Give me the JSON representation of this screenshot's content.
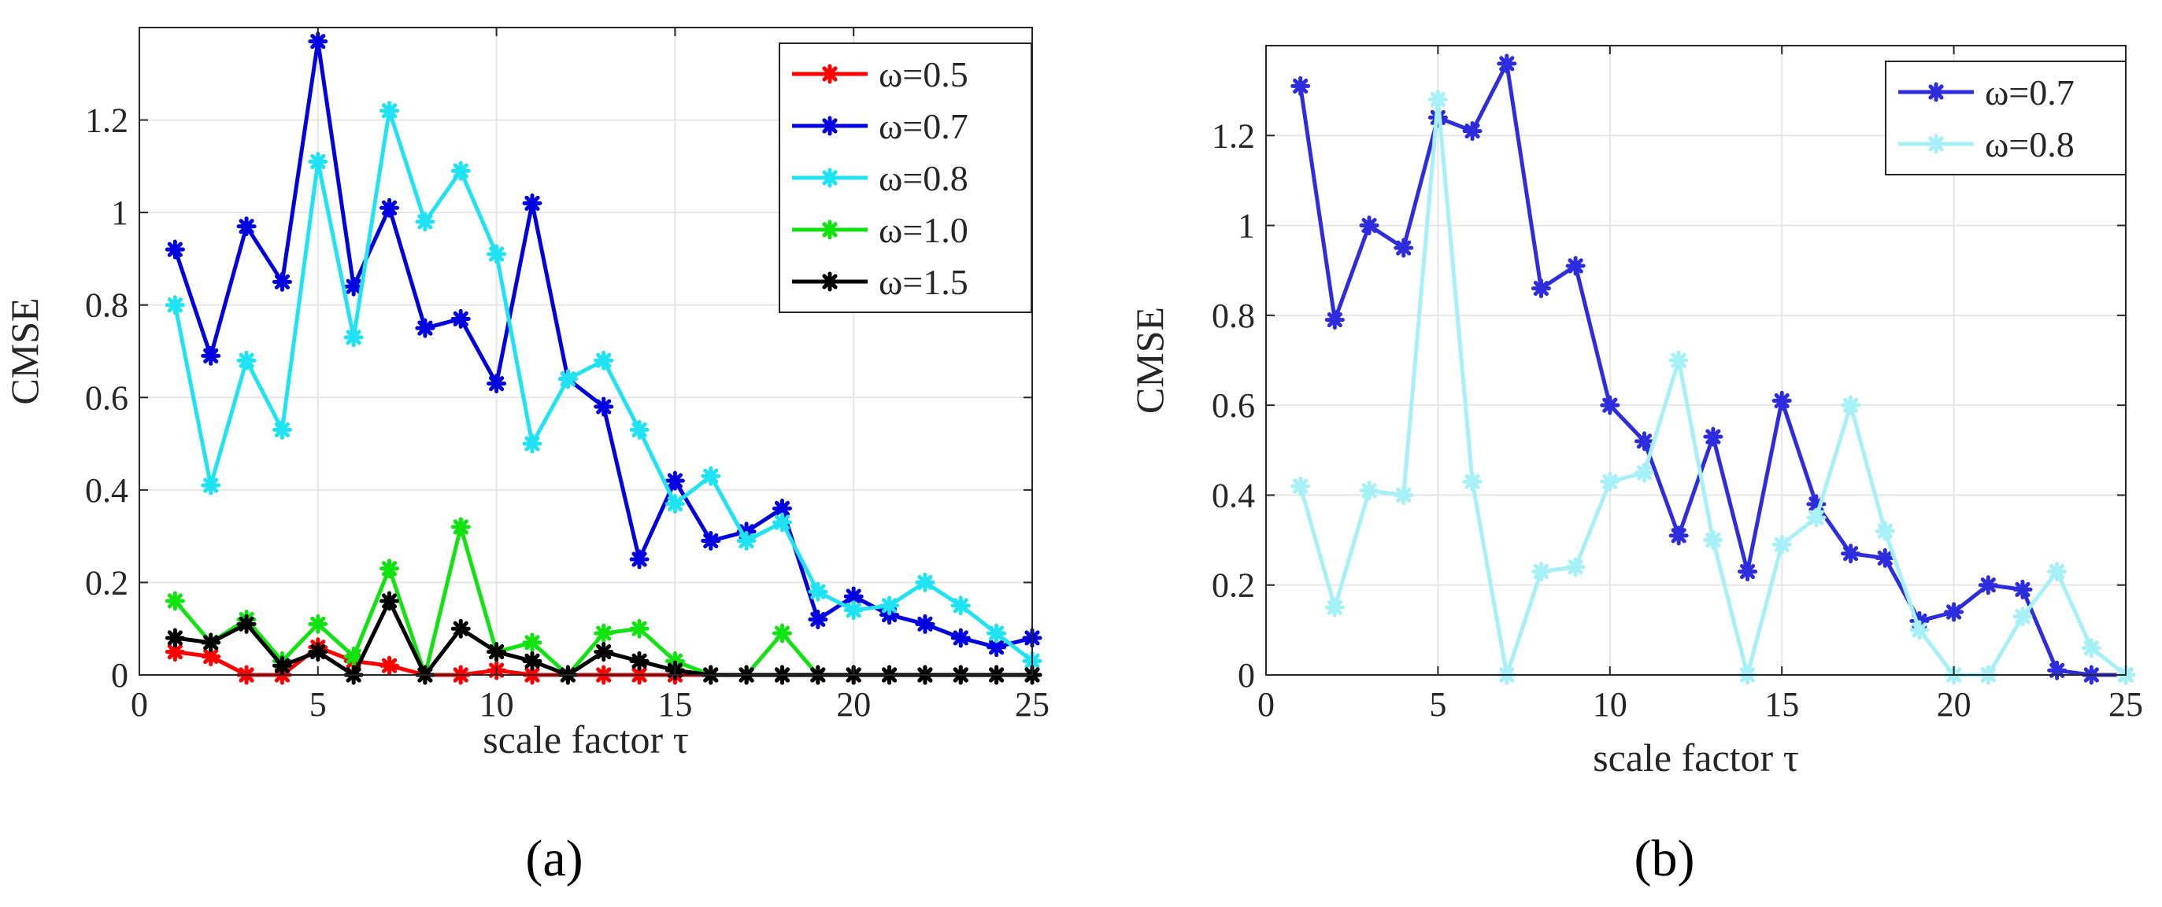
{
  "chart_data": [
    {
      "type": "line",
      "panel_label": "(a)",
      "xlabel": "scale factor τ",
      "ylabel": "CMSE",
      "xlim": [
        0,
        25
      ],
      "ylim": [
        0,
        1.4
      ],
      "xticks": [
        0,
        5,
        10,
        15,
        20,
        25
      ],
      "xtick_labels": [
        "0",
        "5",
        "10",
        "15",
        "20",
        "25"
      ],
      "yticks": [
        0,
        0.2,
        0.4,
        0.6,
        0.8,
        1,
        1.2
      ],
      "ytick_labels": [
        "0",
        "0.2",
        "0.4",
        "0.6",
        "0.8",
        "1",
        "1.2"
      ],
      "grid": true,
      "legend_position": "top-right",
      "x": [
        1,
        2,
        3,
        4,
        5,
        6,
        7,
        8,
        9,
        10,
        11,
        12,
        13,
        14,
        15,
        16,
        17,
        18,
        19,
        20,
        21,
        22,
        23,
        24,
        25
      ],
      "series": [
        {
          "name": "ω=0.5",
          "color": "#ff0000",
          "values": [
            0.05,
            0.04,
            0,
            0,
            0.06,
            0.03,
            0.02,
            0,
            0,
            0.01,
            0,
            0,
            0,
            0,
            0,
            0,
            0,
            0,
            0,
            0,
            0,
            0,
            0,
            0,
            0
          ]
        },
        {
          "name": "ω=0.7",
          "color": "#0000e0",
          "values": [
            0.92,
            0.69,
            0.97,
            0.85,
            1.37,
            0.84,
            1.01,
            0.75,
            0.77,
            0.63,
            1.02,
            0.64,
            0.58,
            0.25,
            0.42,
            0.29,
            0.31,
            0.36,
            0.12,
            0.17,
            0.13,
            0.11,
            0.08,
            0.06,
            0.08
          ]
        },
        {
          "name": "ω=0.8",
          "color": "#1fe3f3",
          "values": [
            0.8,
            0.41,
            0.68,
            0.53,
            1.11,
            0.73,
            1.22,
            0.98,
            1.09,
            0.91,
            0.5,
            0.64,
            0.68,
            0.53,
            0.37,
            0.43,
            0.29,
            0.33,
            0.18,
            0.14,
            0.15,
            0.2,
            0.15,
            0.09,
            0.03
          ]
        },
        {
          "name": "ω=1.0",
          "color": "#11e311",
          "values": [
            0.16,
            0.07,
            0.12,
            0.03,
            0.11,
            0.04,
            0.23,
            0,
            0.32,
            0.05,
            0.07,
            0,
            0.09,
            0.1,
            0.03,
            0,
            0,
            0.09,
            0,
            null,
            null,
            null,
            null,
            null,
            null
          ]
        },
        {
          "name": "ω=1.5",
          "color": "#000000",
          "values": [
            0.08,
            0.07,
            0.11,
            0.02,
            0.05,
            0,
            0.16,
            0,
            0.1,
            0.05,
            0.03,
            0,
            0.05,
            0.03,
            0.01,
            0,
            0,
            0,
            0,
            0,
            0,
            0,
            0,
            0,
            0
          ]
        }
      ]
    },
    {
      "type": "line",
      "panel_label": "(b)",
      "xlabel": "scale factor τ",
      "ylabel": "CMSE",
      "xlim": [
        0,
        25
      ],
      "ylim": [
        0,
        1.4
      ],
      "xticks": [
        0,
        5,
        10,
        15,
        20,
        25
      ],
      "xtick_labels": [
        "0",
        "5",
        "10",
        "15",
        "20",
        "25"
      ],
      "yticks": [
        0,
        0.2,
        0.4,
        0.6,
        0.8,
        1,
        1.2
      ],
      "ytick_labels": [
        "0",
        "0.2",
        "0.4",
        "0.6",
        "0.8",
        "1",
        "1.2"
      ],
      "grid": true,
      "legend_position": "top-right",
      "x": [
        1,
        2,
        3,
        4,
        5,
        6,
        7,
        8,
        9,
        10,
        11,
        12,
        13,
        14,
        15,
        16,
        17,
        18,
        19,
        20,
        21,
        22,
        23,
        24,
        25
      ],
      "series": [
        {
          "name": "ω=0.7",
          "color": "#2d2ddf",
          "values": [
            1.31,
            0.79,
            1.0,
            0.95,
            1.24,
            1.21,
            1.36,
            0.86,
            0.91,
            0.6,
            0.52,
            0.31,
            0.53,
            0.23,
            0.61,
            0.38,
            0.27,
            0.26,
            0.12,
            0.14,
            0.2,
            0.19,
            0.01,
            0,
            0
          ]
        },
        {
          "name": "ω=0.8",
          "color": "#a6f0f7",
          "values": [
            0.42,
            0.15,
            0.41,
            0.4,
            1.28,
            0.43,
            0,
            0.23,
            0.24,
            0.43,
            0.45,
            0.7,
            0.3,
            0,
            0.29,
            0.35,
            0.6,
            0.32,
            0.1,
            0,
            0,
            0.13,
            0.23,
            0.06,
            0
          ]
        }
      ]
    }
  ]
}
